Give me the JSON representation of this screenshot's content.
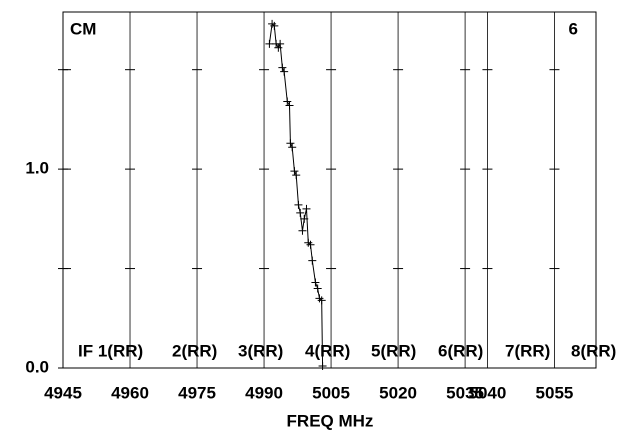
{
  "chart_data": {
    "type": "line",
    "corner_left": "CM",
    "corner_right": "6",
    "x_label": "FREQ MHz",
    "if_labels": [
      "IF 1(RR)",
      "2(RR)",
      "3(RR)",
      "4(RR)",
      "5(RR)",
      "6(RR)",
      "7(RR)",
      "8(RR)"
    ],
    "x": [
      4991.2,
      4991.8,
      4992.3,
      4992.7,
      4993.2,
      4993.6,
      4994.1,
      4994.5,
      4995.2,
      4995.7,
      4995.9,
      4996.3,
      4996.8,
      4997.2,
      4997.7,
      4998.1,
      4998.6,
      4999.0,
      4999.5,
      4999.9,
      5000.4,
      5000.8,
      5001.5,
      5002.0,
      5002.4,
      5002.9,
      5003.1
    ],
    "series": [
      {
        "color": "#000000",
        "marker": "+",
        "values": [
          1.63,
          1.73,
          1.72,
          1.63,
          1.61,
          1.63,
          1.51,
          1.49,
          1.34,
          1.32,
          1.13,
          1.11,
          0.99,
          0.97,
          0.82,
          0.78,
          0.69,
          0.75,
          0.8,
          0.63,
          0.62,
          0.54,
          0.43,
          0.4,
          0.35,
          0.34,
          0.01
        ]
      }
    ],
    "xlim": [
      4945,
      5064.3
    ],
    "xticks": [
      4945,
      4960,
      4975,
      4990,
      5005,
      5020,
      5035,
      5040,
      5055
    ],
    "ylim": [
      0,
      1.79
    ],
    "yticks": [
      {
        "value": 0,
        "label": "0.0"
      },
      {
        "value": 1,
        "label": "1.0"
      }
    ],
    "minor_yticks": [
      0.5,
      1.5
    ],
    "grid": true
  }
}
